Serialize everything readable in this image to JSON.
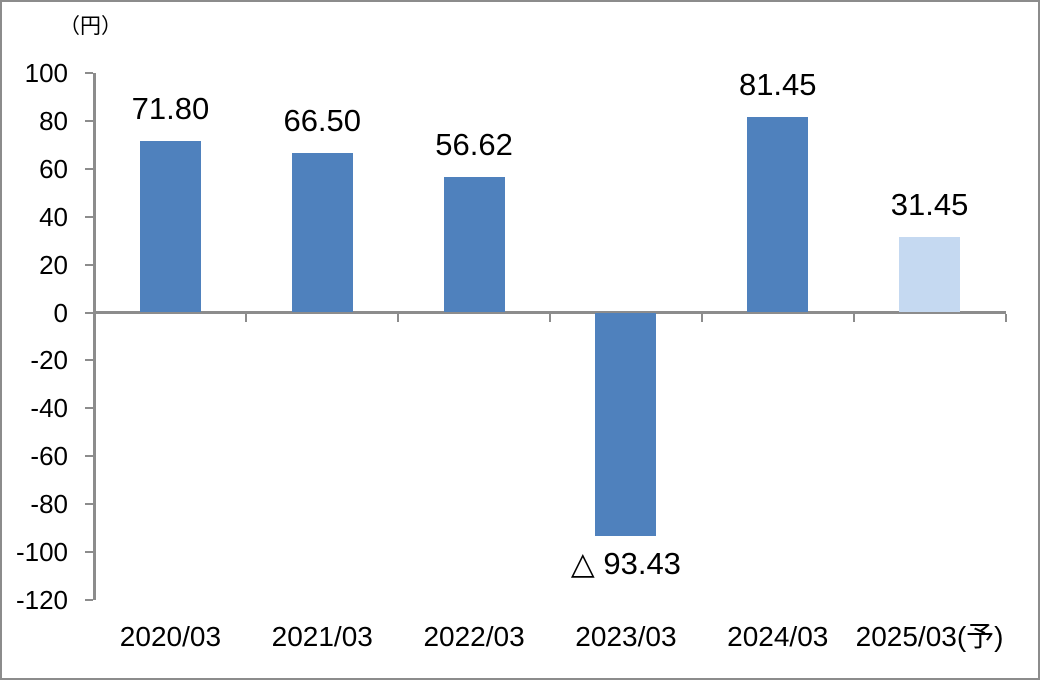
{
  "chart_data": {
    "type": "bar",
    "title": "",
    "unit_label": "（円）",
    "categories": [
      "2020/03",
      "2021/03",
      "2022/03",
      "2023/03",
      "2024/03",
      "2025/03(予)"
    ],
    "values": [
      71.8,
      66.5,
      56.62,
      -93.43,
      81.45,
      31.45
    ],
    "data_labels": [
      "71.80",
      "66.50",
      "56.62",
      "△ 93.43",
      "81.45",
      "31.45"
    ],
    "bar_colors": [
      "#4F81BD",
      "#4F81BD",
      "#4F81BD",
      "#4F81BD",
      "#4F81BD",
      "#C5D9F1"
    ],
    "negative_marker": "△",
    "xlabel": "",
    "ylabel": "",
    "ylim": [
      -120,
      100
    ],
    "ytick_step": 20,
    "ytick_labels": [
      "100",
      "80",
      "60",
      "40",
      "20",
      "0",
      "-20",
      "-40",
      "-60",
      "-80",
      "-100",
      "-120"
    ],
    "grid": false,
    "legend": "none",
    "colors": {
      "bar": "#4F81BD",
      "bar_forecast": "#C5D9F1",
      "axis": "#8C8C8C",
      "text": "#000000",
      "border": "#8C8C8C"
    }
  }
}
